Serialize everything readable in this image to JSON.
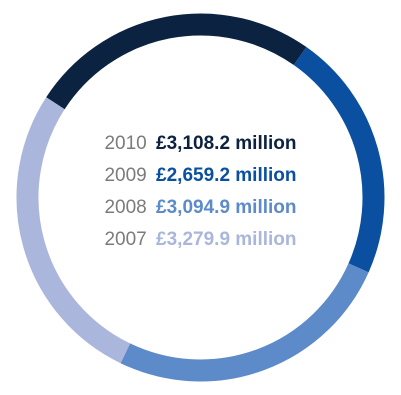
{
  "chart_data": {
    "type": "pie",
    "style": "donut",
    "unit": "£ million",
    "entries": [
      {
        "label": "2010",
        "value_text": "£3,108.2 million",
        "value": 3108.2,
        "color": "#0b2240"
      },
      {
        "label": "2009",
        "value_text": "£2,659.2 million",
        "value": 2659.2,
        "color": "#0b50a0"
      },
      {
        "label": "2008",
        "value_text": "£3,094.9 million",
        "value": 3094.9,
        "color": "#5d8ac8"
      },
      {
        "label": "2007",
        "value_text": "£3,279.9 million",
        "value": 3279.9,
        "color": "#aab6dc"
      }
    ]
  }
}
